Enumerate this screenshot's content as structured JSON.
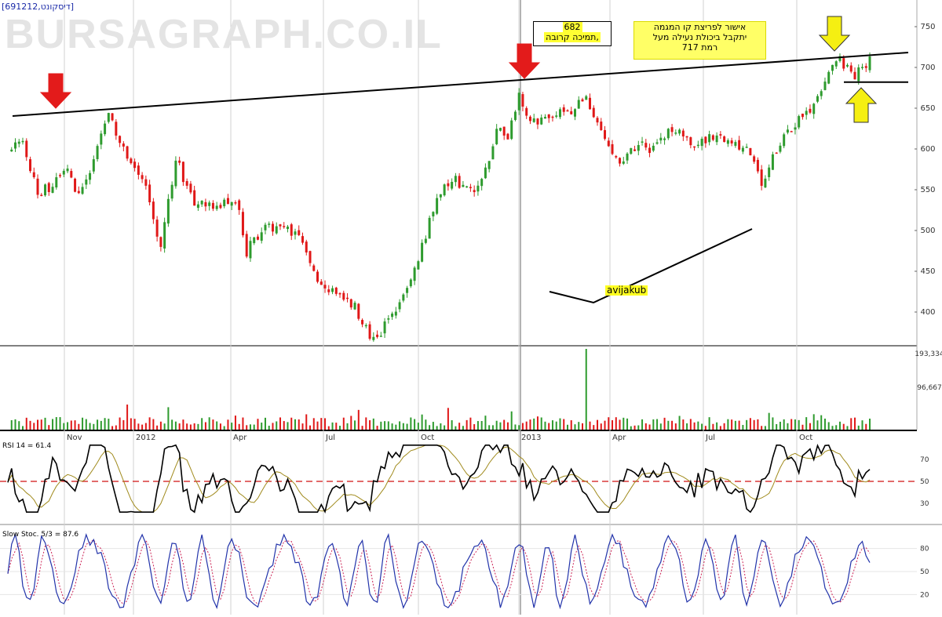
{
  "header": {
    "ticker": "[691212,דיסקונט]",
    "watermark": "BURSAGRAPH.CO.IL"
  },
  "annotations": {
    "box1_line1": "682",
    "box1_line2": "תמיכה קרובה,",
    "box2_line1": "אישור לפריצת קו המגמה",
    "box2_line2": "יתקבל ביכולת נעילה מעל",
    "box2_line3": "רמת 717",
    "author": "avijakub"
  },
  "indicators": {
    "rsi_label": "RSI 14 = 61.4",
    "stoch_label": "Slow Stoc. 5/3 = 87.6"
  },
  "colors": {
    "up": "#2e9b2e",
    "down": "#e01818",
    "arrow_red": "#e31b1b",
    "arrow_yellow": "#f5ef12",
    "note_bg": "#ffff33",
    "rsi_signal": "#a08a1c",
    "stoch_k": "#2233aa",
    "stoch_d": "#cc2255"
  },
  "chart_data": [
    {
      "type": "candlestick",
      "x_labels": [
        "Nov",
        "2012",
        "Apr",
        "Jul",
        "Oct",
        "2013",
        "Apr",
        "Jul",
        "Oct"
      ],
      "y_ticks": [
        750,
        700,
        650,
        600,
        550,
        500,
        450,
        400
      ],
      "ylim": [
        355,
        770
      ],
      "anchors": [
        {
          "t": 0,
          "v": 595
        },
        {
          "t": 4,
          "v": 610
        },
        {
          "t": 8,
          "v": 545
        },
        {
          "t": 12,
          "v": 555
        },
        {
          "t": 15,
          "v": 580
        },
        {
          "t": 19,
          "v": 540
        },
        {
          "t": 22,
          "v": 570
        },
        {
          "t": 27,
          "v": 640
        },
        {
          "t": 32,
          "v": 595
        },
        {
          "t": 36,
          "v": 565
        },
        {
          "t": 41,
          "v": 480
        },
        {
          "t": 45,
          "v": 590
        },
        {
          "t": 50,
          "v": 530
        },
        {
          "t": 56,
          "v": 530
        },
        {
          "t": 61,
          "v": 540
        },
        {
          "t": 64,
          "v": 475
        },
        {
          "t": 68,
          "v": 500
        },
        {
          "t": 73,
          "v": 505
        },
        {
          "t": 79,
          "v": 490
        },
        {
          "t": 83,
          "v": 440
        },
        {
          "t": 88,
          "v": 425
        },
        {
          "t": 93,
          "v": 405
        },
        {
          "t": 98,
          "v": 365
        },
        {
          "t": 104,
          "v": 400
        },
        {
          "t": 108,
          "v": 440
        },
        {
          "t": 111,
          "v": 480
        },
        {
          "t": 115,
          "v": 545
        },
        {
          "t": 120,
          "v": 560
        },
        {
          "t": 125,
          "v": 545
        },
        {
          "t": 128,
          "v": 575
        },
        {
          "t": 131,
          "v": 625
        },
        {
          "t": 134,
          "v": 610
        },
        {
          "t": 137,
          "v": 670
        },
        {
          "t": 140,
          "v": 630
        },
        {
          "t": 145,
          "v": 640
        },
        {
          "t": 150,
          "v": 645
        },
        {
          "t": 155,
          "v": 660
        },
        {
          "t": 159,
          "v": 620
        },
        {
          "t": 164,
          "v": 580
        },
        {
          "t": 169,
          "v": 605
        },
        {
          "t": 173,
          "v": 600
        },
        {
          "t": 177,
          "v": 625
        },
        {
          "t": 181,
          "v": 615
        },
        {
          "t": 185,
          "v": 605
        },
        {
          "t": 189,
          "v": 615
        },
        {
          "t": 194,
          "v": 610
        },
        {
          "t": 199,
          "v": 595
        },
        {
          "t": 202,
          "v": 560
        },
        {
          "t": 205,
          "v": 590
        },
        {
          "t": 210,
          "v": 625
        },
        {
          "t": 215,
          "v": 650
        },
        {
          "t": 218,
          "v": 665
        },
        {
          "t": 221,
          "v": 705
        },
        {
          "t": 223,
          "v": 710
        },
        {
          "t": 226,
          "v": 690
        },
        {
          "t": 229,
          "v": 695
        },
        {
          "t": 231,
          "v": 712
        }
      ],
      "trend_line": {
        "from": {
          "month_label": "Sep 2011",
          "v": 638
        },
        "to": {
          "month_label": "Dec 2013",
          "v": 715
        }
      },
      "support_line": {
        "v": 682
      },
      "arrows": [
        {
          "color": "red",
          "at": "Oct 2011 high",
          "v": 641
        },
        {
          "color": "red",
          "at": "Jan 2013 high",
          "v": 683
        },
        {
          "color": "yellow",
          "direction": "down",
          "v": 713
        },
        {
          "color": "yellow",
          "direction": "up",
          "v": 680
        }
      ]
    },
    {
      "type": "bar",
      "name": "volume",
      "y_ticks_labels": [
        "193,334",
        "96,667"
      ],
      "ylim": [
        0,
        193334
      ]
    },
    {
      "type": "line",
      "name": "RSI 14",
      "y_ticks": [
        70,
        50,
        30
      ],
      "ylim": [
        15,
        85
      ],
      "reference_line": 50
    },
    {
      "type": "line",
      "name": "Slow Stoc. 5/3",
      "y_ticks": [
        80,
        50,
        20
      ],
      "ylim": [
        0,
        100
      ]
    }
  ]
}
